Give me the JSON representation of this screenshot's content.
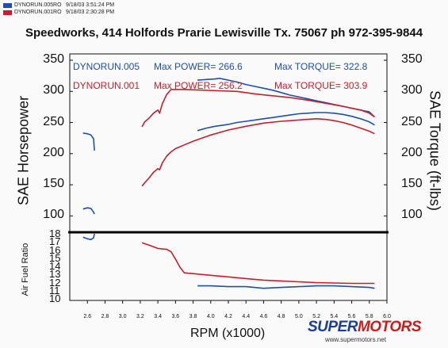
{
  "header": {
    "files": [
      {
        "name": "DYNORUN.005RO",
        "date": "9/18/03 3:51:24 PM",
        "color": "#1f4fa8"
      },
      {
        "name": "DYNORUN.001RO",
        "date": "9/18/03 2:30:28 PM",
        "color": "#c81e2c"
      }
    ],
    "title": "Speedworks, 414 Holfords Prarie Lewisville Tx. 75067  ph 972-395-9844"
  },
  "legend": {
    "run005": {
      "name": "DYNORUN.005",
      "power": "Max POWER= 266.6",
      "torque": "Max TORQUE= 322.8",
      "color": "#1f4fa8"
    },
    "run001": {
      "name": "DYNORUN.001",
      "power": "Max POWER= 256.2",
      "torque": "Max TORQUE= 303.9",
      "color": "#c81e2c"
    }
  },
  "watermark": {
    "brand_a": "SUPER",
    "brand_b": "MOTORS",
    "url": "www.supermotors.net"
  },
  "chart_data": [
    {
      "type": "line",
      "xlabel": "RPM (x1000)",
      "ylabel": "SAE Horsepower",
      "ylabel_right": "SAE Torque (ft-lbs)",
      "xlim": [
        2.4,
        6.0
      ],
      "ylim": [
        75,
        350
      ],
      "ylim_right": [
        75,
        350
      ],
      "x_ticks": [
        "2.6",
        "2.8",
        "3.0",
        "3.2",
        "3.4",
        "3.6",
        "3.8",
        "4.0",
        "4.2",
        "4.4",
        "4.6",
        "4.8",
        "5.0",
        "5.2",
        "5.4",
        "5.6",
        "5.8",
        "6.0"
      ],
      "y_ticks": [
        "100",
        "150",
        "200",
        "250",
        "300",
        "350"
      ],
      "y_ticks_right": [
        "100",
        "150",
        "200",
        "250",
        "300",
        "350"
      ],
      "series": [
        {
          "name": "DYNORUN.005",
          "measure": "torque",
          "color": "#1f4fa8",
          "segments": [
            [
              [
                2.55,
                233
              ],
              [
                2.6,
                232
              ],
              [
                2.64,
                230
              ],
              [
                2.67,
                224
              ],
              [
                2.68,
                205
              ]
            ],
            [
              [
                3.85,
                318
              ],
              [
                3.95,
                319
              ],
              [
                4.05,
                320
              ],
              [
                4.1,
                321
              ],
              [
                4.2,
                318
              ],
              [
                4.3,
                315
              ],
              [
                4.4,
                311
              ],
              [
                4.5,
                308
              ],
              [
                4.6,
                305
              ],
              [
                4.7,
                302
              ],
              [
                4.8,
                298
              ],
              [
                4.9,
                294
              ],
              [
                5.0,
                291
              ],
              [
                5.1,
                288
              ],
              [
                5.2,
                285
              ],
              [
                5.3,
                282
              ],
              [
                5.4,
                279
              ],
              [
                5.5,
                276
              ],
              [
                5.6,
                273
              ],
              [
                5.7,
                270
              ],
              [
                5.8,
                267
              ],
              [
                5.86,
                259
              ]
            ]
          ]
        },
        {
          "name": "DYNORUN.005",
          "measure": "power",
          "color": "#1f4fa8",
          "segments": [
            [
              [
                2.55,
                111
              ],
              [
                2.6,
                113
              ],
              [
                2.64,
                112
              ],
              [
                2.67,
                106
              ],
              [
                2.68,
                103
              ]
            ],
            [
              [
                3.85,
                237
              ],
              [
                3.95,
                241
              ],
              [
                4.05,
                244
              ],
              [
                4.2,
                247
              ],
              [
                4.3,
                250
              ],
              [
                4.4,
                252
              ],
              [
                4.5,
                254
              ],
              [
                4.6,
                256
              ],
              [
                4.7,
                258
              ],
              [
                4.8,
                260
              ],
              [
                4.9,
                262
              ],
              [
                5.0,
                264
              ],
              [
                5.1,
                265
              ],
              [
                5.2,
                266
              ],
              [
                5.3,
                266
              ],
              [
                5.4,
                265
              ],
              [
                5.5,
                263
              ],
              [
                5.6,
                260
              ],
              [
                5.7,
                256
              ],
              [
                5.8,
                251
              ],
              [
                5.86,
                246
              ]
            ]
          ]
        },
        {
          "name": "DYNORUN.001",
          "measure": "torque",
          "color": "#c81e2c",
          "segments": [
            [
              [
                3.22,
                243
              ],
              [
                3.25,
                251
              ],
              [
                3.3,
                257
              ],
              [
                3.35,
                265
              ],
              [
                3.4,
                270
              ],
              [
                3.42,
                265
              ],
              [
                3.45,
                280
              ],
              [
                3.5,
                295
              ],
              [
                3.55,
                303
              ],
              [
                3.7,
                303
              ],
              [
                3.9,
                302
              ],
              [
                4.1,
                301
              ],
              [
                4.3,
                300
              ],
              [
                4.5,
                296
              ],
              [
                4.7,
                293
              ],
              [
                4.9,
                290
              ],
              [
                5.1,
                286
              ],
              [
                5.3,
                281
              ],
              [
                5.5,
                276
              ],
              [
                5.7,
                270
              ],
              [
                5.8,
                265
              ],
              [
                5.86,
                259
              ]
            ]
          ]
        },
        {
          "name": "DYNORUN.001",
          "measure": "power",
          "color": "#c81e2c",
          "segments": [
            [
              [
                3.22,
                148
              ],
              [
                3.25,
                153
              ],
              [
                3.3,
                161
              ],
              [
                3.35,
                170
              ],
              [
                3.4,
                176
              ],
              [
                3.42,
                174
              ],
              [
                3.45,
                185
              ],
              [
                3.5,
                196
              ],
              [
                3.55,
                203
              ],
              [
                3.6,
                208
              ],
              [
                3.7,
                214
              ],
              [
                3.8,
                220
              ],
              [
                3.9,
                225
              ],
              [
                4.0,
                230
              ],
              [
                4.2,
                238
              ],
              [
                4.4,
                244
              ],
              [
                4.6,
                249
              ],
              [
                4.8,
                252
              ],
              [
                5.0,
                254
              ],
              [
                5.1,
                255
              ],
              [
                5.2,
                256
              ],
              [
                5.3,
                255
              ],
              [
                5.4,
                253
              ],
              [
                5.5,
                250
              ],
              [
                5.6,
                246
              ],
              [
                5.7,
                241
              ],
              [
                5.8,
                236
              ],
              [
                5.86,
                232
              ]
            ]
          ]
        }
      ]
    },
    {
      "type": "line",
      "xlabel": "RPM (x1000)",
      "ylabel": "Air Fuel Ratio",
      "xlim": [
        2.4,
        6.0
      ],
      "ylim": [
        10,
        18
      ],
      "y_ticks": [
        "10",
        "11",
        "12",
        "13",
        "14",
        "15",
        "16",
        "17",
        "18"
      ],
      "series": [
        {
          "name": "DYNORUN.005",
          "color": "#1f4fa8",
          "segments": [
            [
              [
                2.55,
                17.6
              ],
              [
                2.6,
                17.4
              ],
              [
                2.64,
                17.3
              ],
              [
                2.67,
                17.5
              ],
              [
                2.68,
                18.0
              ]
            ],
            [
              [
                3.85,
                11.6
              ],
              [
                4.0,
                11.6
              ],
              [
                4.2,
                11.5
              ],
              [
                4.4,
                11.5
              ],
              [
                4.6,
                11.3
              ],
              [
                4.8,
                11.4
              ],
              [
                5.0,
                11.5
              ],
              [
                5.2,
                11.6
              ],
              [
                5.4,
                11.6
              ],
              [
                5.6,
                11.5
              ],
              [
                5.8,
                11.4
              ],
              [
                5.86,
                11.3
              ]
            ]
          ]
        },
        {
          "name": "DYNORUN.001",
          "color": "#c81e2c",
          "segments": [
            [
              [
                3.22,
                16.9
              ],
              [
                3.3,
                16.6
              ],
              [
                3.4,
                16.2
              ],
              [
                3.5,
                16.1
              ],
              [
                3.55,
                15.8
              ],
              [
                3.6,
                14.9
              ],
              [
                3.65,
                13.9
              ],
              [
                3.7,
                13.2
              ],
              [
                3.8,
                13.1
              ],
              [
                4.0,
                12.9
              ],
              [
                4.2,
                12.7
              ],
              [
                4.4,
                12.5
              ],
              [
                4.6,
                12.3
              ],
              [
                4.8,
                12.2
              ],
              [
                5.0,
                12.1
              ],
              [
                5.2,
                12.0
              ],
              [
                5.4,
                11.95
              ],
              [
                5.6,
                11.9
              ],
              [
                5.86,
                11.9
              ]
            ]
          ]
        }
      ]
    }
  ]
}
